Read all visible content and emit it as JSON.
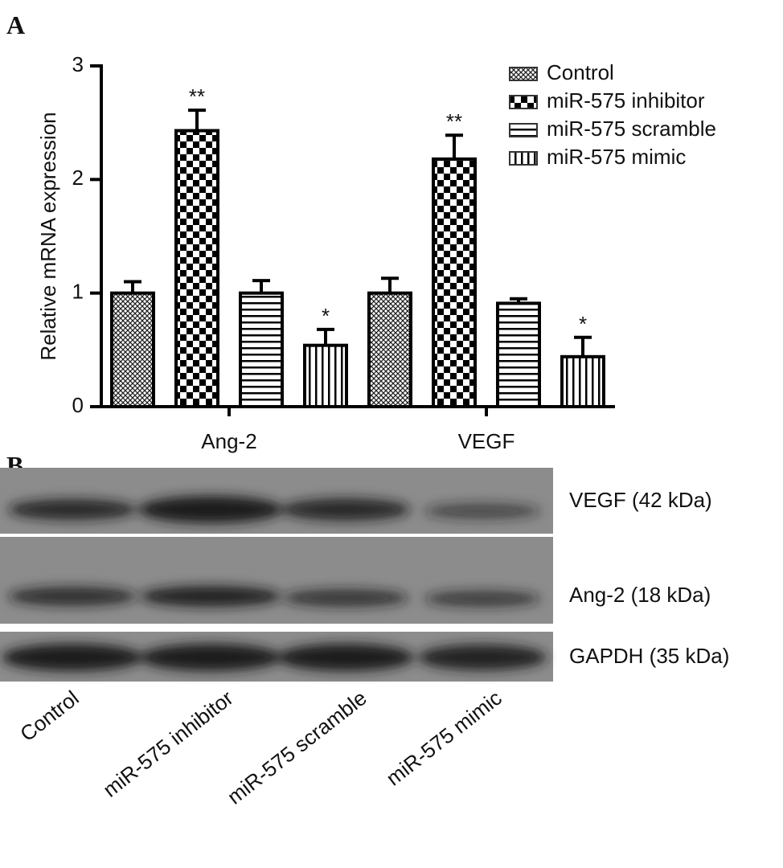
{
  "chart_data": {
    "type": "bar",
    "panel_label": "A",
    "y_label": "Relative mRNA expression",
    "categories": [
      "Ang-2",
      "VEGF"
    ],
    "series": [
      {
        "name": "Control",
        "pattern": "crosshatch",
        "values": [
          1.0,
          1.0
        ],
        "error": [
          0.1,
          0.13
        ],
        "annotations": [
          null,
          null
        ]
      },
      {
        "name": "miR-575 inhibitor",
        "pattern": "checker",
        "values": [
          2.43,
          2.18
        ],
        "error": [
          0.18,
          0.21
        ],
        "annotations": [
          "**",
          "**"
        ]
      },
      {
        "name": "miR-575 scramble",
        "pattern": "horizontal",
        "values": [
          1.0,
          0.91
        ],
        "error": [
          0.11,
          0.04
        ],
        "annotations": [
          null,
          null
        ]
      },
      {
        "name": "miR-575 mimic",
        "pattern": "vertical",
        "values": [
          0.54,
          0.44
        ],
        "error": [
          0.14,
          0.17
        ],
        "annotations": [
          "*",
          "*"
        ]
      }
    ],
    "ylim": [
      0,
      3
    ],
    "yticks": [
      0,
      1,
      2,
      3
    ],
    "legend": "upper right"
  },
  "blot": {
    "panel_label": "B",
    "bands": [
      "VEGF (42 kDa)",
      "Ang-2 (18 kDa)",
      "GAPDH (35 kDa)"
    ],
    "lanes": [
      "Control",
      "miR-575 inhibitor",
      "miR-575 scramble",
      "miR-575 mimic"
    ]
  }
}
